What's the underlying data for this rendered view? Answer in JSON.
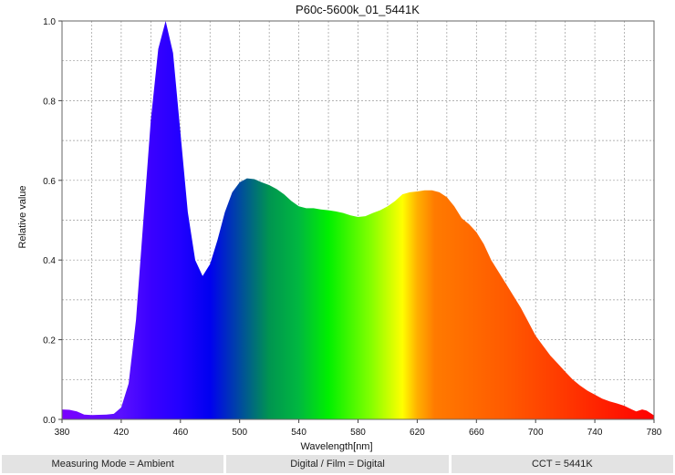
{
  "chart_data": {
    "type": "area",
    "title": "P60c-5600k_01_5441K",
    "xlabel": "Wavelength[nm]",
    "ylabel": "Relative value",
    "xlim": [
      380,
      780
    ],
    "ylim": [
      0,
      1
    ],
    "xticks": [
      380,
      420,
      460,
      500,
      540,
      580,
      620,
      660,
      700,
      740,
      780
    ],
    "yticks": [
      0.0,
      0.2,
      0.4,
      0.6,
      0.8,
      1.0
    ],
    "grid": true,
    "fill": "visible-spectrum gradient",
    "x": [
      380,
      385,
      390,
      395,
      400,
      410,
      415,
      420,
      425,
      430,
      435,
      440,
      445,
      450,
      455,
      460,
      465,
      470,
      475,
      480,
      485,
      490,
      495,
      500,
      505,
      510,
      515,
      520,
      525,
      530,
      535,
      540,
      545,
      550,
      555,
      560,
      565,
      570,
      575,
      580,
      585,
      590,
      595,
      600,
      605,
      610,
      615,
      620,
      625,
      630,
      635,
      640,
      645,
      650,
      655,
      660,
      665,
      670,
      675,
      680,
      685,
      690,
      695,
      700,
      705,
      710,
      715,
      720,
      725,
      730,
      735,
      740,
      745,
      750,
      755,
      760,
      765,
      768,
      772,
      775,
      780
    ],
    "y": [
      0.025,
      0.024,
      0.02,
      0.012,
      0.011,
      0.012,
      0.014,
      0.03,
      0.09,
      0.25,
      0.5,
      0.75,
      0.93,
      1.0,
      0.92,
      0.72,
      0.52,
      0.4,
      0.36,
      0.39,
      0.45,
      0.52,
      0.57,
      0.595,
      0.605,
      0.603,
      0.595,
      0.588,
      0.578,
      0.565,
      0.548,
      0.535,
      0.53,
      0.53,
      0.527,
      0.525,
      0.522,
      0.518,
      0.512,
      0.508,
      0.51,
      0.518,
      0.525,
      0.535,
      0.548,
      0.565,
      0.57,
      0.572,
      0.575,
      0.575,
      0.57,
      0.558,
      0.535,
      0.505,
      0.49,
      0.47,
      0.44,
      0.4,
      0.37,
      0.34,
      0.31,
      0.28,
      0.245,
      0.21,
      0.185,
      0.16,
      0.14,
      0.12,
      0.1,
      0.085,
      0.072,
      0.062,
      0.052,
      0.045,
      0.04,
      0.034,
      0.025,
      0.02,
      0.025,
      0.022,
      0.01
    ]
  },
  "footer": {
    "measuring_mode": "Measuring Mode = Ambient",
    "digital_film": "Digital / Film = Digital",
    "cct": "CCT = 5441K"
  }
}
